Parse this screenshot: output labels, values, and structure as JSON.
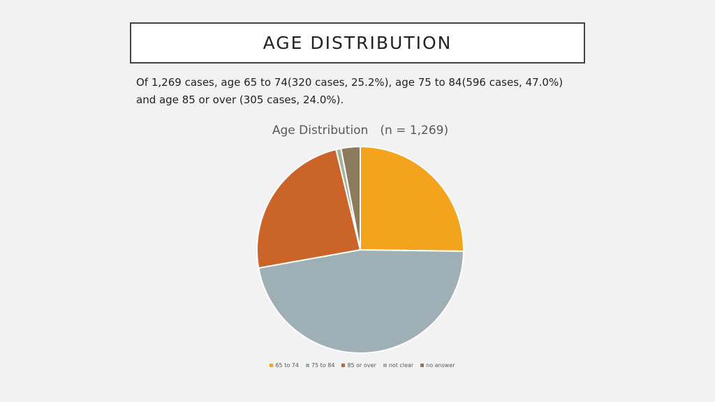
{
  "slide": {
    "title": "AGE DISTRIBUTION",
    "body_line1": "Of 1,269 cases, age 65 to 74(320 cases, 25.2%), age 75 to 84(596 cases, 47.0%)",
    "body_line2": "and age 85 or over (305 cases, 24.0%)."
  },
  "chart_data": {
    "type": "pie",
    "title": "Age Distribution　(n = 1,269)",
    "categories": [
      "65 to 74",
      "75 to 84",
      "85 or over",
      "not clear",
      "no answer"
    ],
    "values": [
      320,
      596,
      305,
      10,
      38
    ],
    "colors": [
      "#F4A31D",
      "#9EB0B5",
      "#CB6429",
      "#A6B39A",
      "#8C7B5C"
    ],
    "legend_position": "bottom",
    "start_angle_deg": 0,
    "direction": "clockwise"
  }
}
